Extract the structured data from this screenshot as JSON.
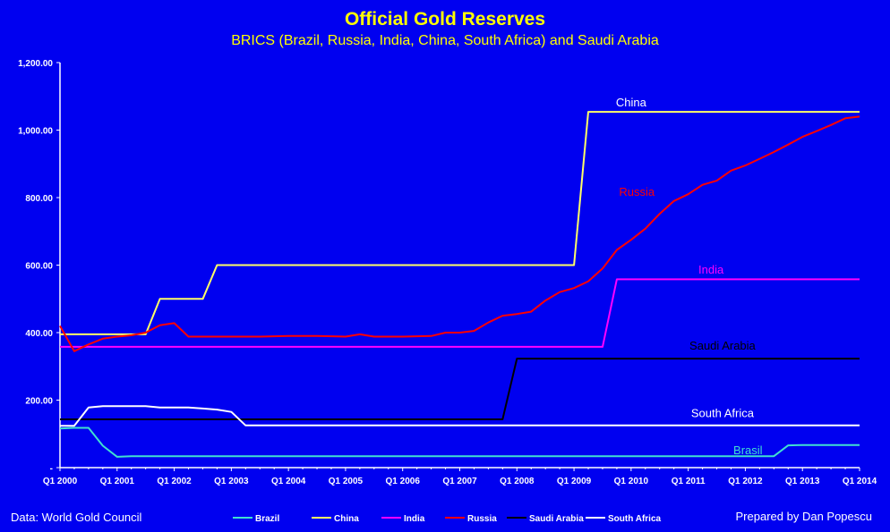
{
  "chart_data": {
    "type": "line",
    "title": "Official Gold Reserves",
    "subtitle": "BRICS (Brazil, Russia, India, China, South Africa) and Saudi Arabia",
    "xlabel": "",
    "ylabel": "",
    "ylim": [
      0,
      1200
    ],
    "y_ticks": [
      "-",
      "200.00",
      "400.00",
      "600.00",
      "800.00",
      "1,000.00",
      "1,200.00"
    ],
    "y_tick_values": [
      0,
      200,
      400,
      600,
      800,
      1000,
      1200
    ],
    "x_range": [
      2000.0,
      2014.0
    ],
    "x_ticks": [
      "Q1 2000",
      "Q1 2001",
      "Q1 2002",
      "Q1 2003",
      "Q1 2004",
      "Q1 2005",
      "Q1 2006",
      "Q1 2007",
      "Q1 2008",
      "Q1 2009",
      "Q1 2010",
      "Q1 2011",
      "Q1 2012",
      "Q1 2013",
      "Q1 2014"
    ],
    "x_tick_values": [
      2000,
      2001,
      2002,
      2003,
      2004,
      2005,
      2006,
      2007,
      2008,
      2009,
      2010,
      2011,
      2012,
      2013,
      2014
    ],
    "grid": false,
    "legend_position": "bottom",
    "series": [
      {
        "name": "Brazil",
        "color": "#40e0d0",
        "points": [
          [
            2000.0,
            116
          ],
          [
            2000.25,
            118
          ],
          [
            2000.5,
            118
          ],
          [
            2000.75,
            65
          ],
          [
            2001.0,
            32
          ],
          [
            2001.25,
            34
          ],
          [
            2003.0,
            34
          ],
          [
            2005.0,
            34
          ],
          [
            2007.0,
            34
          ],
          [
            2009.0,
            34
          ],
          [
            2011.0,
            34
          ],
          [
            2012.5,
            34
          ],
          [
            2012.75,
            66
          ],
          [
            2013.0,
            67
          ],
          [
            2014.0,
            67
          ]
        ],
        "label": "Brasil",
        "label_color": "#40e0d0"
      },
      {
        "name": "China",
        "color": "#ffff66",
        "points": [
          [
            2000.0,
            395
          ],
          [
            2001.5,
            395
          ],
          [
            2001.75,
            500
          ],
          [
            2002.0,
            500
          ],
          [
            2002.5,
            500
          ],
          [
            2002.75,
            600
          ],
          [
            2003.0,
            600
          ],
          [
            2009.0,
            600
          ],
          [
            2009.25,
            1054
          ],
          [
            2014.0,
            1054
          ]
        ],
        "label": "China",
        "label_color": "#ffffff"
      },
      {
        "name": "India",
        "color": "#ff00ff",
        "points": [
          [
            2000.0,
            358
          ],
          [
            2009.5,
            358
          ],
          [
            2009.75,
            558
          ],
          [
            2014.0,
            558
          ]
        ],
        "label": "India",
        "label_color": "#ff00ff"
      },
      {
        "name": "Russia",
        "color": "#ff0000",
        "points": [
          [
            2000.0,
            420
          ],
          [
            2000.25,
            345
          ],
          [
            2000.5,
            365
          ],
          [
            2000.75,
            382
          ],
          [
            2001.0,
            388
          ],
          [
            2001.25,
            392
          ],
          [
            2001.5,
            400
          ],
          [
            2001.75,
            422
          ],
          [
            2002.0,
            428
          ],
          [
            2002.25,
            388
          ],
          [
            2002.5,
            388
          ],
          [
            2003.0,
            388
          ],
          [
            2003.5,
            388
          ],
          [
            2004.0,
            390
          ],
          [
            2004.5,
            390
          ],
          [
            2005.0,
            388
          ],
          [
            2005.25,
            395
          ],
          [
            2005.5,
            388
          ],
          [
            2006.0,
            388
          ],
          [
            2006.5,
            390
          ],
          [
            2006.75,
            400
          ],
          [
            2007.0,
            400
          ],
          [
            2007.25,
            405
          ],
          [
            2007.5,
            430
          ],
          [
            2007.75,
            450
          ],
          [
            2008.0,
            455
          ],
          [
            2008.25,
            462
          ],
          [
            2008.5,
            495
          ],
          [
            2008.75,
            520
          ],
          [
            2009.0,
            532
          ],
          [
            2009.25,
            552
          ],
          [
            2009.5,
            590
          ],
          [
            2009.75,
            645
          ],
          [
            2010.0,
            675
          ],
          [
            2010.25,
            708
          ],
          [
            2010.5,
            752
          ],
          [
            2010.75,
            790
          ],
          [
            2011.0,
            810
          ],
          [
            2011.25,
            838
          ],
          [
            2011.5,
            850
          ],
          [
            2011.75,
            880
          ],
          [
            2012.0,
            895
          ],
          [
            2012.25,
            915
          ],
          [
            2012.5,
            935
          ],
          [
            2012.75,
            957
          ],
          [
            2013.0,
            980
          ],
          [
            2013.25,
            997
          ],
          [
            2013.5,
            1015
          ],
          [
            2013.75,
            1035
          ],
          [
            2014.0,
            1040
          ]
        ],
        "label": "Russia",
        "label_color": "#ff0000"
      },
      {
        "name": "Saudi Arabia",
        "color": "#000000",
        "points": [
          [
            2000.0,
            143
          ],
          [
            2007.75,
            143
          ],
          [
            2008.0,
            323
          ],
          [
            2014.0,
            323
          ]
        ],
        "label": "Saudi Arabia",
        "label_color": "#000000"
      },
      {
        "name": "South Africa",
        "color": "#ffffff",
        "points": [
          [
            2000.0,
            124
          ],
          [
            2000.25,
            124
          ],
          [
            2000.5,
            178
          ],
          [
            2000.75,
            182
          ],
          [
            2001.0,
            182
          ],
          [
            2001.5,
            182
          ],
          [
            2001.75,
            178
          ],
          [
            2002.0,
            178
          ],
          [
            2002.25,
            178
          ],
          [
            2002.5,
            175
          ],
          [
            2002.75,
            172
          ],
          [
            2003.0,
            165
          ],
          [
            2003.25,
            125
          ],
          [
            2005.0,
            125
          ],
          [
            2008.0,
            125
          ],
          [
            2011.0,
            125
          ],
          [
            2014.0,
            125
          ]
        ],
        "label": "South Africa",
        "label_color": "#ffffff"
      }
    ]
  },
  "footer": {
    "source": "Data: World Gold Council",
    "credit": "Prepared by Dan Popescu"
  }
}
